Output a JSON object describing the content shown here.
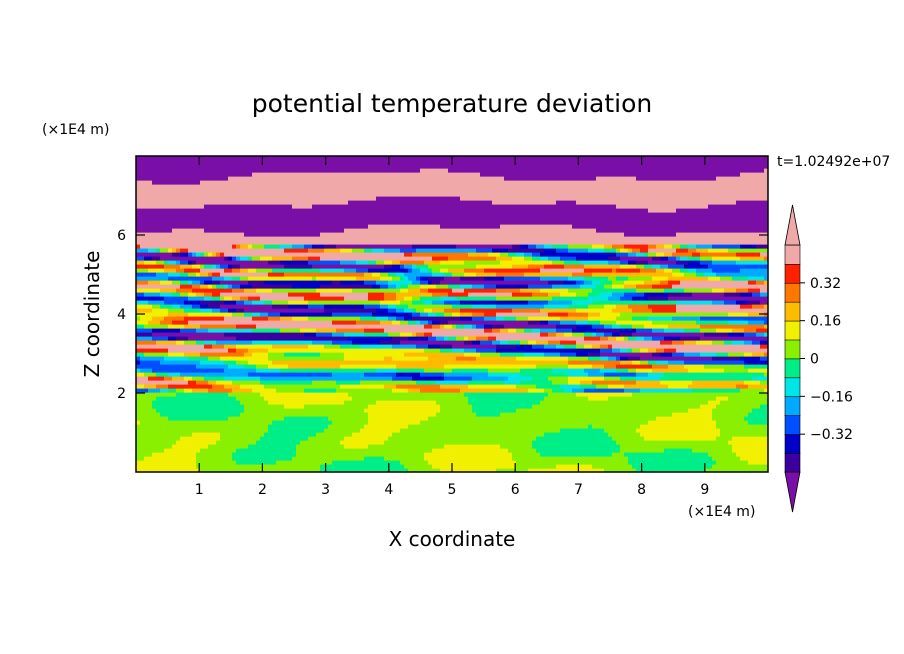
{
  "chart_data": {
    "type": "heatmap",
    "title": "potential temperature deviation",
    "xlabel": "X coordinate",
    "ylabel": "Z coordinate",
    "x_unit": "(×1E4 m)",
    "y_unit": "(×1E4 m)",
    "time_label": "t=1.02492e+07",
    "xlim": [
      0,
      10
    ],
    "ylim": [
      0,
      8
    ],
    "x_ticks": [
      1,
      2,
      3,
      4,
      5,
      6,
      7,
      8,
      9
    ],
    "y_ticks": [
      2,
      4,
      6
    ],
    "colorbar": {
      "levels": [
        -0.48,
        -0.4,
        -0.32,
        -0.24,
        -0.16,
        -0.08,
        0,
        0.08,
        0.16,
        0.24,
        0.32,
        0.4,
        0.48
      ],
      "tick_values": [
        0.32,
        0.16,
        0,
        -0.16,
        -0.32
      ],
      "tick_labels": [
        "0.32",
        "0.16",
        "0",
        "−0.16",
        "−0.32"
      ],
      "colors_low_to_high": [
        "#7a0fa8",
        "#3c00a0",
        "#0000c8",
        "#0050ff",
        "#00aaff",
        "#00e6e6",
        "#00ee88",
        "#88f000",
        "#f0f000",
        "#ffbb00",
        "#ff7700",
        "#ff2000",
        "#f0a8a8"
      ],
      "extends": "both"
    },
    "regions": [
      {
        "name": "upper layer",
        "z_range": [
          5.8,
          8
        ],
        "dominant_values": "≤ -0.48 and ≥ 0.48 alternating bands"
      },
      {
        "name": "middle layer",
        "z_range": [
          2,
          5.8
        ],
        "dominant_values": "mixed -0.4 to 0.4 wavy bands"
      },
      {
        "name": "lower layer",
        "z_range": [
          0,
          2
        ],
        "dominant_values": "0 to 0.08"
      }
    ]
  }
}
